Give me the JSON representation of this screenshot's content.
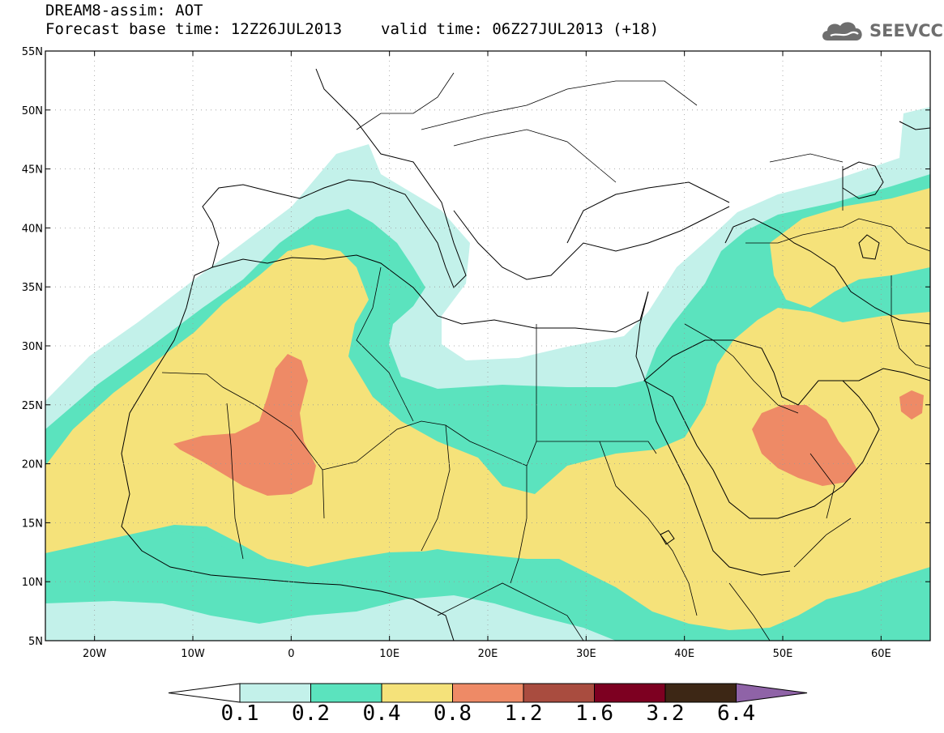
{
  "title": {
    "line1": "DREAM8-assim: AOT",
    "base_time": "Forecast base time: 12Z26JUL2013",
    "valid_time": "valid time: 06Z27JUL2013 (+18)"
  },
  "logo": {
    "text": "SEEVCCC",
    "color": "#6e6e6e"
  },
  "axes": {
    "lon_range": [
      -25,
      65
    ],
    "lat_range": [
      5,
      55
    ],
    "lat_ticks": [
      "55N",
      "50N",
      "45N",
      "40N",
      "35N",
      "30N",
      "25N",
      "20N",
      "15N",
      "10N",
      "5N"
    ],
    "lon_ticks": [
      "20W",
      "10W",
      "0",
      "10E",
      "20E",
      "30E",
      "40E",
      "50E",
      "60E"
    ],
    "grid": "dotted"
  },
  "colorbar": {
    "labels": [
      "0.1",
      "0.2",
      "0.4",
      "0.8",
      "1.2",
      "1.6",
      "3.2",
      "6.4"
    ],
    "colors": [
      "#c3f1ea",
      "#5be3be",
      "#f5e27a",
      "#ee8a66",
      "#a94c3f",
      "#7d0021",
      "#3d2715",
      "#8f63a7"
    ],
    "under_color": "#ffffff"
  }
}
